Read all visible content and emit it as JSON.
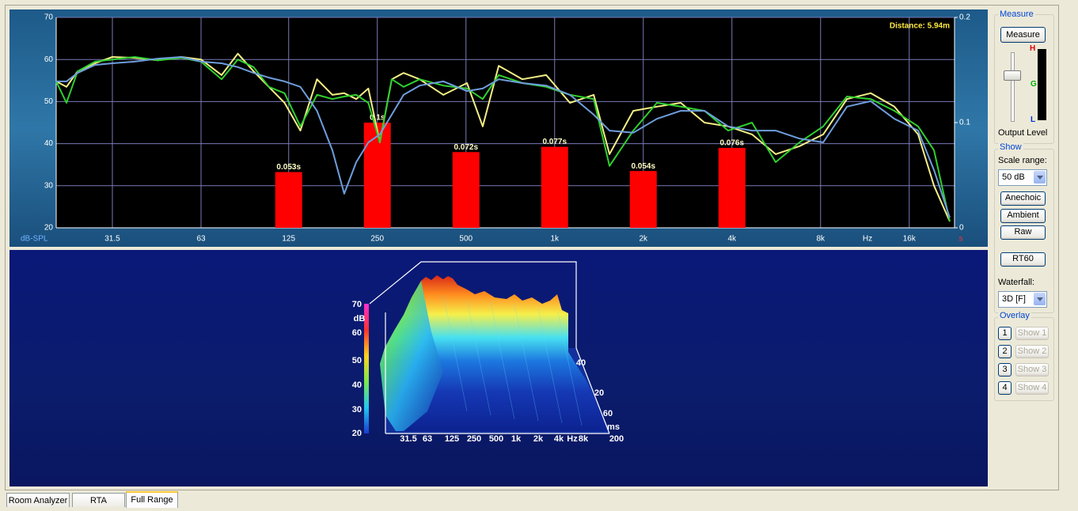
{
  "chart_data": {
    "type": "line",
    "x_scale": "log",
    "grid": true,
    "y_label": "dB-SPL",
    "x_label": "Hz",
    "y2_label": "s",
    "annotation": "Distance: 5.94m",
    "xlim": [
      20.3,
      22800
    ],
    "xticks": [
      31.5,
      63,
      125,
      250,
      500,
      {
        "value": 1000,
        "label": "1k"
      },
      {
        "value": 2000,
        "label": "2k"
      },
      {
        "value": 4000,
        "label": "4k"
      },
      {
        "value": 8000,
        "label": "8k"
      },
      {
        "value": 16000,
        "label": "16k"
      }
    ],
    "ylim": [
      20,
      70
    ],
    "yticks": [
      20,
      30,
      40,
      50,
      60,
      70
    ],
    "y2lim": [
      0,
      0.2
    ],
    "y2ticks": [
      0,
      0.1,
      0.2
    ],
    "x": [
      20.3,
      22,
      24,
      27.5,
      31.5,
      37.5,
      45,
      54,
      63,
      74,
      84,
      95,
      107,
      121,
      137,
      156,
      176,
      193,
      212,
      233,
      255,
      280,
      307,
      348,
      419,
      504,
      570,
      646,
      777,
      936,
      1127,
      1357,
      1536,
      1849,
      2226,
      2681,
      3228,
      3885,
      4678,
      5632,
      6782,
      8168,
      9832,
      11838,
      14248,
      17155,
      19423,
      21974
    ],
    "series": [
      {
        "color": "#f4ef86",
        "values": [
          54.8,
          53.5,
          57.2,
          59.1,
          60.6,
          60.4,
          59.8,
          60.6,
          60.0,
          56.3,
          61.4,
          57.2,
          53.5,
          49.7,
          43.1,
          55.3,
          51.6,
          52.0,
          50.6,
          53.1,
          40.3,
          55.3,
          56.8,
          55.3,
          51.6,
          54.4,
          44.1,
          58.5,
          55.3,
          56.3,
          49.7,
          51.6,
          37.5,
          47.8,
          48.8,
          49.7,
          45.0,
          44.1,
          42.2,
          37.5,
          39.4,
          42.2,
          50.6,
          52.0,
          48.8,
          42.2,
          30.0,
          21.5
        ]
      },
      {
        "color": "#2fcf2f",
        "values": [
          54.8,
          49.7,
          57.2,
          59.5,
          60.0,
          60.6,
          59.8,
          60.4,
          59.5,
          55.3,
          60.0,
          58.2,
          53.5,
          52.0,
          44.1,
          51.6,
          50.6,
          51.2,
          51.6,
          49.7,
          40.3,
          55.3,
          53.5,
          55.3,
          53.8,
          53.1,
          50.6,
          56.3,
          54.4,
          53.5,
          51.6,
          50.6,
          34.7,
          43.1,
          49.7,
          48.8,
          47.8,
          43.1,
          45.0,
          35.6,
          40.3,
          44.1,
          51.2,
          50.6,
          47.8,
          44.1,
          38.4,
          21.5
        ]
      },
      {
        "color": "#6f9edc",
        "values": [
          54.8,
          54.8,
          56.8,
          58.7,
          59.1,
          59.5,
          60.2,
          60.6,
          59.5,
          59.1,
          58.2,
          56.8,
          55.7,
          54.8,
          53.5,
          47.8,
          38.4,
          28.1,
          35.6,
          40.3,
          42.2,
          46.9,
          51.6,
          53.8,
          54.8,
          52.5,
          53.1,
          55.3,
          54.4,
          53.8,
          51.6,
          46.9,
          43.1,
          42.6,
          45.9,
          47.8,
          47.8,
          44.1,
          43.1,
          43.1,
          41.2,
          40.3,
          48.8,
          50.1,
          45.9,
          43.1,
          33.7,
          22.4
        ]
      },
      {
        "type": "bar",
        "axis": "y2",
        "color": "#ff0000",
        "x": [
          125,
          250,
          500,
          1000,
          2000,
          4000
        ],
        "values": [
          0.053,
          0.1,
          0.072,
          0.077,
          0.054,
          0.076
        ],
        "value_labels": [
          "0.053s",
          "0.1s",
          "0.072s",
          "0.077s",
          "0.054s",
          "0.076s"
        ]
      }
    ]
  },
  "waterfall": {
    "z_label": "dB",
    "z_ticks": [
      "70",
      "60",
      "50",
      "40",
      "30",
      "20"
    ],
    "x_ticks": [
      "31.5",
      "63",
      "125",
      "250",
      "500",
      "1k",
      "2k",
      "4k",
      "8k"
    ],
    "x_label": "Hz",
    "t_ticks": [
      "40",
      "20",
      "60",
      "200"
    ],
    "t_label": "ms"
  },
  "controls": {
    "measure_group": "Measure",
    "measure_button": "Measure",
    "meter_labels": [
      "H",
      "G",
      "L"
    ],
    "output_level": "Output Level",
    "show_group": "Show",
    "scale_range_label": "Scale range:",
    "scale_range": "50 dB",
    "buttons": [
      "Anechoic",
      "Ambient",
      "Raw"
    ],
    "rt60_button": "RT60",
    "waterfall_label": "Waterfall:",
    "waterfall_mode": "3D [F]",
    "overlay_group": "Overlay",
    "overlays": [
      {
        "slot": "1",
        "button": "Show 1"
      },
      {
        "slot": "2",
        "button": "Show 2"
      },
      {
        "slot": "3",
        "button": "Show 3"
      },
      {
        "slot": "4",
        "button": "Show 4"
      }
    ]
  },
  "tabs": [
    "Room Analyzer",
    "RTA",
    "Full Range"
  ]
}
